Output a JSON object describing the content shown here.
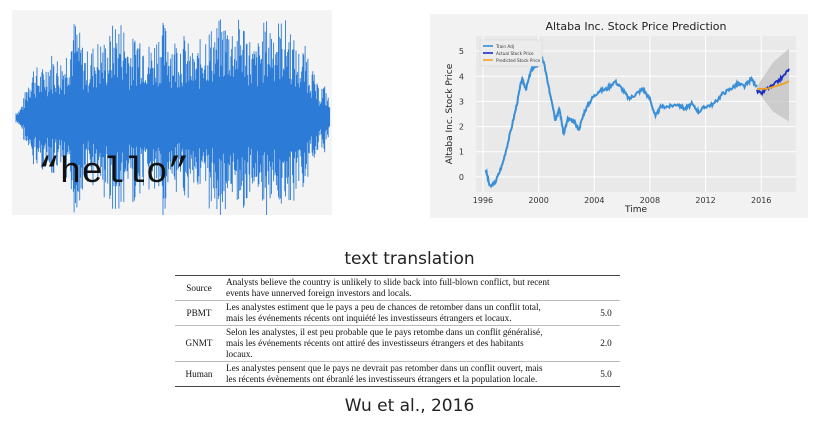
{
  "audio": {
    "word": "“hello”",
    "wave_color": "#2c7bd6",
    "panel_color": "#f4f4f4",
    "icon": "waveform"
  },
  "chart_data": {
    "type": "line",
    "title": "Altaba Inc. Stock Price Prediction",
    "xlabel": "Time",
    "ylabel": "Altaba Inc. Stock Price",
    "xticks": [
      "1996",
      "2000",
      "2004",
      "2008",
      "2012",
      "2016"
    ],
    "yticks": [
      "0",
      "1",
      "2",
      "3",
      "4",
      "5"
    ],
    "xlim": [
      1995.5,
      2018.5
    ],
    "ylim": [
      -0.6,
      5.6
    ],
    "grid": true,
    "legend_position": "top-left",
    "legend": [
      "Train Adj",
      "Actual Stock Price",
      "Predicted Stock Price"
    ],
    "series": [
      {
        "name": "Train Adj",
        "color": "#3a8fd6",
        "points": [
          [
            1996.2,
            0.3
          ],
          [
            1996.5,
            -0.4
          ],
          [
            1996.9,
            -0.2
          ],
          [
            1997.4,
            0.5
          ],
          [
            1997.9,
            1.6
          ],
          [
            1998.4,
            2.8
          ],
          [
            1998.8,
            3.9
          ],
          [
            1999.1,
            3.5
          ],
          [
            1999.5,
            4.3
          ],
          [
            1999.9,
            4.4
          ],
          [
            2000.1,
            4.9
          ],
          [
            2000.4,
            4.5
          ],
          [
            2000.7,
            3.6
          ],
          [
            2001.0,
            2.9
          ],
          [
            2001.2,
            2.3
          ],
          [
            2001.5,
            2.7
          ],
          [
            2001.8,
            1.7
          ],
          [
            2002.1,
            2.3
          ],
          [
            2002.5,
            2.2
          ],
          [
            2002.9,
            1.9
          ],
          [
            2003.3,
            2.6
          ],
          [
            2003.8,
            3.1
          ],
          [
            2004.3,
            3.4
          ],
          [
            2004.9,
            3.5
          ],
          [
            2005.5,
            3.8
          ],
          [
            2006.0,
            3.5
          ],
          [
            2006.5,
            3.1
          ],
          [
            2007.0,
            3.3
          ],
          [
            2007.5,
            3.5
          ],
          [
            2008.0,
            3.1
          ],
          [
            2008.4,
            2.4
          ],
          [
            2008.8,
            2.8
          ],
          [
            2009.4,
            2.8
          ],
          [
            2010.0,
            2.9
          ],
          [
            2010.5,
            2.7
          ],
          [
            2011.0,
            2.9
          ],
          [
            2011.5,
            2.6
          ],
          [
            2012.0,
            2.8
          ],
          [
            2012.6,
            2.9
          ],
          [
            2013.2,
            3.3
          ],
          [
            2013.8,
            3.5
          ],
          [
            2014.3,
            3.7
          ],
          [
            2014.8,
            3.6
          ],
          [
            2015.3,
            3.9
          ],
          [
            2015.7,
            3.6
          ]
        ]
      },
      {
        "name": "Actual Stock Price",
        "color": "#1a2fc4",
        "points": [
          [
            2015.7,
            3.4
          ],
          [
            2016.0,
            3.3
          ],
          [
            2016.4,
            3.5
          ],
          [
            2016.8,
            3.6
          ],
          [
            2017.2,
            3.8
          ],
          [
            2017.6,
            4.0
          ],
          [
            2018.0,
            4.3
          ]
        ]
      },
      {
        "name": "Predicted Stock Price",
        "color": "#f0a020",
        "points": [
          [
            2015.7,
            3.5
          ],
          [
            2016.4,
            3.5
          ],
          [
            2017.0,
            3.6
          ],
          [
            2017.6,
            3.7
          ],
          [
            2018.0,
            3.8
          ]
        ]
      }
    ],
    "confidence_band": {
      "x": [
        2015.7,
        2018.0
      ],
      "upper": [
        3.6,
        5.1
      ],
      "lower": [
        3.4,
        2.2
      ]
    }
  },
  "translation": {
    "heading": "text translation",
    "rows": [
      {
        "system": "Source",
        "lines": [
          "Analysts believe the country is unlikely to slide back into full-blown conflict, but recent",
          "events have unnerved foreign investors and locals."
        ],
        "score": ""
      },
      {
        "system": "PBMT",
        "lines": [
          "Les analystes estiment que le pays a peu de chances de retomber dans un conflit total,",
          "mais les événements récents ont inquiété les investisseurs étrangers et locaux."
        ],
        "score": "5.0"
      },
      {
        "system": "GNMT",
        "lines": [
          "Selon les analystes, il est peu probable que le pays retombe dans un conflit généralisé,",
          "mais les événements récents ont attiré des investisseurs étrangers et des habitants",
          "locaux."
        ],
        "score": "2.0"
      },
      {
        "system": "Human",
        "lines": [
          "Les analystes pensent que le pays ne devrait pas retomber dans un conflit ouvert, mais",
          "les récents évènements ont ébranlé les investisseurs étrangers et la population locale."
        ],
        "score": "5.0"
      }
    ],
    "citation": "Wu et al., 2016"
  }
}
